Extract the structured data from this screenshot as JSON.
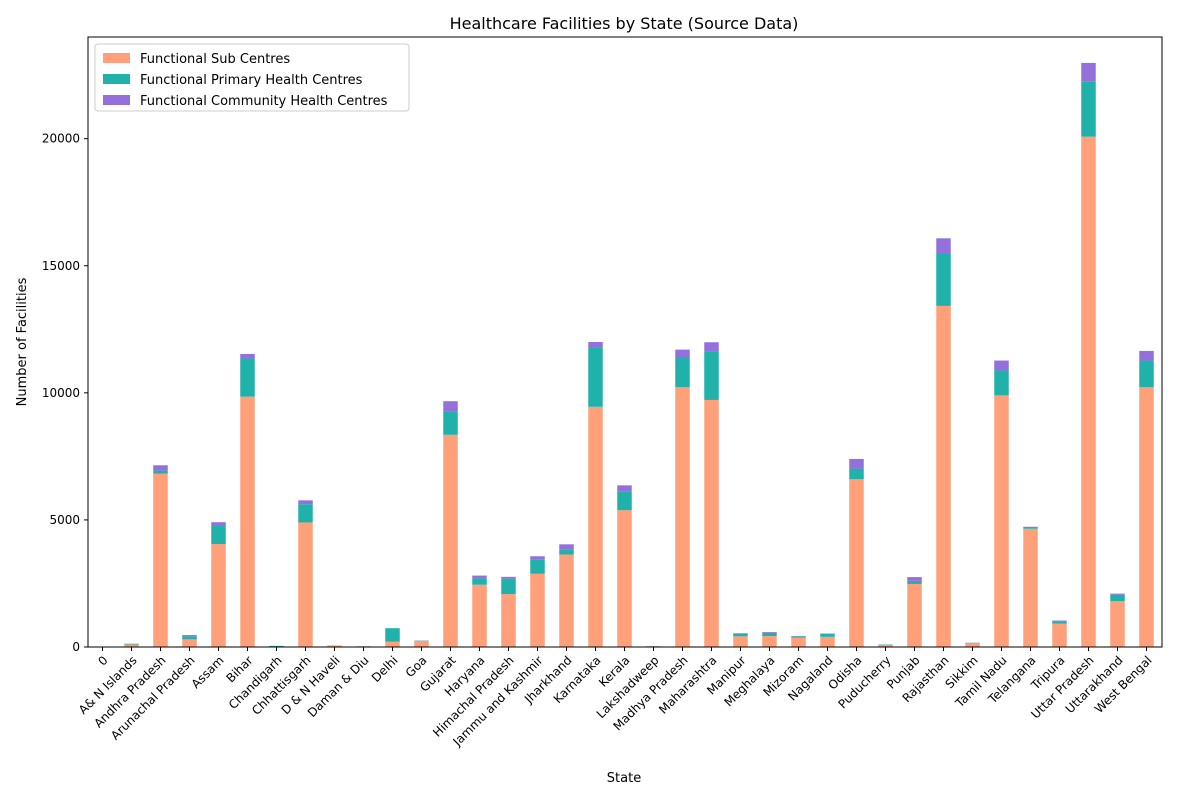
{
  "chart_data": {
    "type": "bar",
    "stacked": true,
    "title": "Healthcare Facilities by State (Source Data)",
    "xlabel": "State",
    "ylabel": "Number of Facilities",
    "ylim": [
      0,
      24000
    ],
    "yticks": [
      0,
      5000,
      10000,
      15000,
      20000
    ],
    "ytick_labels": [
      "0",
      "5000",
      "10000",
      "15000",
      "20000"
    ],
    "grid": false,
    "legend_position": "top-left",
    "categories": [
      "0",
      "A& N Islands",
      "Andhra Pradesh",
      "Arunachal Pradesh",
      "Assam",
      "Bihar",
      "Chandigarh",
      "Chhattisgarh",
      "D & N Haveli",
      "Daman & Diu",
      "Delhi",
      "Goa",
      "Gujarat",
      "Haryana",
      "Himachal Pradesh",
      "Jammu and Kashmir",
      "Jharkhand",
      "Karnataka",
      "Kerala",
      "Lakshadweep",
      "Madhya Pradesh",
      "Maharashtra",
      "Manipur",
      "Meghalaya",
      "Mizoram",
      "Nagaland",
      "Odisha",
      "Puducherry",
      "Punjab",
      "Rajasthan",
      "Sikkim",
      "Tamil Nadu",
      "Telangana",
      "Tripura",
      "Uttar Pradesh",
      "Uttarakhand",
      "West Bengal"
    ],
    "series": [
      {
        "name": "Functional Sub Centres",
        "color": "#FFA07A",
        "values": [
          0,
          100,
          6820,
          300,
          4050,
          9850,
          20,
          4900,
          50,
          25,
          210,
          230,
          8350,
          2450,
          2080,
          2880,
          3640,
          9450,
          5380,
          15,
          10220,
          9720,
          420,
          430,
          370,
          400,
          6600,
          80,
          2480,
          13420,
          145,
          9900,
          4650,
          920,
          20080,
          1800,
          10220
        ]
      },
      {
        "name": "Functional Primary Health Centres",
        "color": "#20B2AA",
        "values": [
          0,
          25,
          120,
          120,
          710,
          1500,
          20,
          720,
          10,
          5,
          530,
          20,
          900,
          250,
          610,
          550,
          210,
          2350,
          750,
          10,
          1150,
          1910,
          90,
          130,
          50,
          110,
          420,
          15,
          120,
          2080,
          20,
          980,
          30,
          100,
          2180,
          260,
          1050
        ]
      },
      {
        "name": "Functional Community Health Centres",
        "color": "#9370DB",
        "values": [
          0,
          5,
          210,
          50,
          150,
          180,
          5,
          150,
          0,
          0,
          0,
          5,
          420,
          110,
          70,
          140,
          190,
          200,
          230,
          5,
          330,
          360,
          30,
          30,
          10,
          20,
          380,
          5,
          150,
          580,
          5,
          390,
          50,
          20,
          720,
          40,
          380
        ]
      }
    ]
  }
}
